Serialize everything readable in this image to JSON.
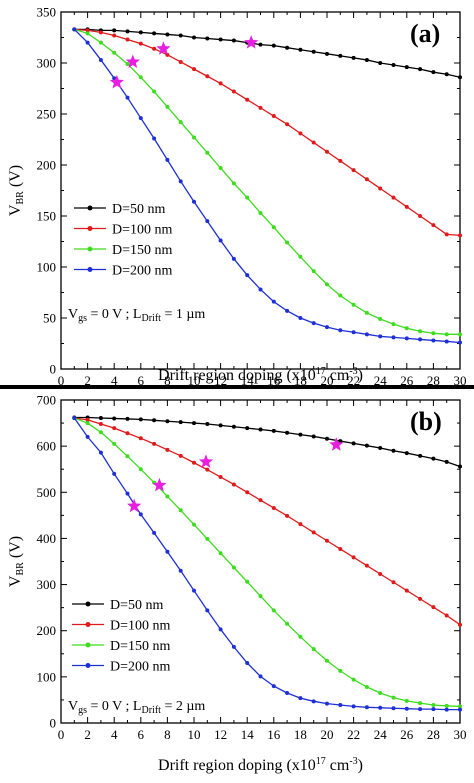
{
  "chart_data": [
    {
      "type": "line",
      "panel_label": "(a)",
      "xlabel": "Drift region doping (x10",
      "xlabel_sup": "17",
      "xlabel_tail": " cm",
      "xlabel_sup2": "-3",
      "xlabel_end": ")",
      "ylabel_main": "V",
      "ylabel_sub": "BR",
      "ylabel_tail": " (V)",
      "xlim": [
        0,
        30
      ],
      "ylim": [
        0,
        350
      ],
      "xticks": [
        0,
        2,
        4,
        6,
        8,
        10,
        12,
        14,
        16,
        18,
        20,
        22,
        24,
        26,
        28,
        30
      ],
      "yticks": [
        0,
        50,
        100,
        150,
        200,
        250,
        300,
        350
      ],
      "annotation": {
        "p1": "V",
        "s1": "gs",
        "p2": " = 0 V ; L",
        "s2": "Drift",
        "p3": " = 1 µm"
      },
      "series": [
        {
          "name": "D=50 nm",
          "color": "#000000",
          "x": [
            1,
            2,
            3,
            4,
            5,
            6,
            7,
            8,
            9,
            10,
            11,
            12,
            13,
            14,
            15,
            16,
            17,
            18,
            19,
            20,
            21,
            22,
            23,
            24,
            25,
            26,
            27,
            28,
            29,
            30
          ],
          "values": [
            333,
            333,
            332,
            332,
            331,
            330,
            329,
            328,
            327,
            325,
            324,
            323,
            322,
            320,
            318,
            317,
            315,
            313,
            311,
            309,
            307,
            305,
            303,
            300,
            298,
            296,
            294,
            291,
            289,
            286
          ]
        },
        {
          "name": "D=100 nm",
          "color": "#e0191b",
          "x": [
            1,
            2,
            3,
            4,
            5,
            6,
            7,
            8,
            9,
            10,
            11,
            12,
            13,
            14,
            15,
            16,
            17,
            18,
            19,
            20,
            21,
            22,
            23,
            24,
            25,
            26,
            27,
            28,
            29,
            30
          ],
          "values": [
            333,
            332,
            330,
            327,
            323,
            319,
            314,
            308,
            301,
            294,
            287,
            280,
            272,
            264,
            256,
            248,
            240,
            231,
            222,
            213,
            204,
            195,
            186,
            177,
            168,
            159,
            150,
            141,
            132,
            131
          ]
        },
        {
          "name": "D=150 nm",
          "color": "#3ddc1e",
          "x": [
            1,
            2,
            3,
            4,
            5,
            6,
            7,
            8,
            9,
            10,
            11,
            12,
            13,
            14,
            15,
            16,
            17,
            18,
            19,
            20,
            21,
            22,
            23,
            24,
            25,
            26,
            27,
            28,
            29,
            30
          ],
          "values": [
            333,
            329,
            320,
            310,
            299,
            286,
            272,
            257,
            242,
            227,
            212,
            197,
            182,
            168,
            153,
            139,
            124,
            110,
            96,
            83,
            72,
            63,
            55,
            49,
            44,
            40,
            37,
            35,
            34,
            34
          ]
        },
        {
          "name": "D=200 nm",
          "color": "#1d2fd6",
          "x": [
            1,
            2,
            3,
            4,
            5,
            6,
            7,
            8,
            9,
            10,
            11,
            12,
            13,
            14,
            15,
            16,
            17,
            18,
            19,
            20,
            21,
            22,
            23,
            24,
            25,
            26,
            27,
            28,
            29,
            30
          ],
          "values": [
            333,
            320,
            303,
            285,
            266,
            246,
            226,
            205,
            184,
            164,
            145,
            126,
            108,
            92,
            78,
            66,
            57,
            50,
            45,
            41,
            38,
            36,
            34,
            32,
            31,
            30,
            29,
            28,
            27,
            26
          ]
        }
      ],
      "stars": [
        {
          "x": 14.3,
          "y": 320
        },
        {
          "x": 7.7,
          "y": 314
        },
        {
          "x": 5.4,
          "y": 301
        },
        {
          "x": 4.2,
          "y": 281
        }
      ],
      "star_color": "#e81ee0"
    },
    {
      "type": "line",
      "panel_label": "(b)",
      "xlabel": "Drift region doping (x10",
      "xlabel_sup": "17",
      "xlabel_tail": " cm",
      "xlabel_sup2": "-3",
      "xlabel_end": ")",
      "ylabel_main": "V",
      "ylabel_sub": "BR",
      "ylabel_tail": " (V)",
      "xlim": [
        0,
        30
      ],
      "ylim": [
        0,
        700
      ],
      "xticks": [
        0,
        2,
        4,
        6,
        8,
        10,
        12,
        14,
        16,
        18,
        20,
        22,
        24,
        26,
        28,
        30
      ],
      "yticks": [
        0,
        100,
        200,
        300,
        400,
        500,
        600,
        700
      ],
      "annotation": {
        "p1": "V",
        "s1": "gs",
        "p2": " = 0 V ; L",
        "s2": "Drift",
        "p3": " = 2 µm"
      },
      "series": [
        {
          "name": "D=50 nm",
          "color": "#000000",
          "x": [
            1,
            2,
            3,
            4,
            5,
            6,
            7,
            8,
            9,
            10,
            11,
            12,
            13,
            14,
            15,
            16,
            17,
            18,
            19,
            20,
            21,
            22,
            23,
            24,
            25,
            26,
            27,
            28,
            29,
            30
          ],
          "values": [
            662,
            662,
            661,
            660,
            659,
            658,
            656,
            654,
            652,
            650,
            648,
            645,
            642,
            639,
            636,
            633,
            629,
            625,
            621,
            616,
            611,
            606,
            601,
            596,
            590,
            585,
            579,
            573,
            566,
            556
          ]
        },
        {
          "name": "D=100 nm",
          "color": "#e0191b",
          "x": [
            1,
            2,
            3,
            4,
            5,
            6,
            7,
            8,
            9,
            10,
            11,
            12,
            13,
            14,
            15,
            16,
            17,
            18,
            19,
            20,
            21,
            22,
            23,
            24,
            25,
            26,
            27,
            28,
            29,
            30
          ],
          "values": [
            661,
            657,
            648,
            639,
            628,
            617,
            605,
            592,
            579,
            564,
            549,
            533,
            517,
            500,
            483,
            466,
            449,
            431,
            413,
            395,
            377,
            359,
            341,
            323,
            305,
            287,
            269,
            251,
            233,
            213
          ]
        },
        {
          "name": "D=150 nm",
          "color": "#3ddc1e",
          "x": [
            1,
            2,
            3,
            4,
            5,
            6,
            7,
            8,
            9,
            10,
            11,
            12,
            13,
            14,
            15,
            16,
            17,
            18,
            19,
            20,
            21,
            22,
            23,
            24,
            25,
            26,
            27,
            28,
            29,
            30
          ],
          "values": [
            661,
            650,
            630,
            605,
            578,
            550,
            521,
            491,
            461,
            430,
            399,
            368,
            337,
            306,
            275,
            244,
            215,
            187,
            160,
            135,
            113,
            94,
            78,
            65,
            55,
            48,
            43,
            39,
            37,
            36
          ]
        },
        {
          "name": "D=200 nm",
          "color": "#1d2fd6",
          "x": [
            1,
            2,
            3,
            4,
            5,
            6,
            7,
            8,
            9,
            10,
            11,
            12,
            13,
            14,
            15,
            16,
            17,
            18,
            19,
            20,
            21,
            22,
            23,
            24,
            25,
            26,
            27,
            28,
            29,
            30
          ],
          "values": [
            661,
            620,
            586,
            540,
            497,
            452,
            412,
            371,
            330,
            287,
            244,
            203,
            165,
            130,
            101,
            80,
            65,
            54,
            47,
            42,
            39,
            36,
            34,
            33,
            32,
            31,
            30,
            30,
            29,
            29
          ]
        }
      ],
      "stars": [
        {
          "x": 20.7,
          "y": 603
        },
        {
          "x": 10.9,
          "y": 566
        },
        {
          "x": 7.4,
          "y": 515
        },
        {
          "x": 5.5,
          "y": 470
        }
      ],
      "star_color": "#e81ee0"
    }
  ]
}
